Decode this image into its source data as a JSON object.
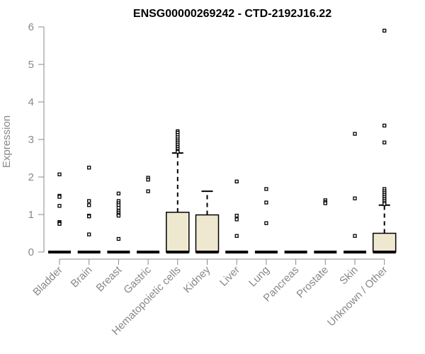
{
  "chart_data": {
    "type": "box",
    "title": "ENSG00000269242 - CTD-2192J16.22",
    "xlabel": "",
    "ylabel": "Expression",
    "ylim": [
      0,
      6
    ],
    "yticks": [
      0,
      1,
      2,
      3,
      4,
      5,
      6
    ],
    "grid": false,
    "colors": {
      "box_fill": "#efe8d0",
      "box_stroke": "#000000",
      "axis": "#888888"
    },
    "categories": [
      "Bladder",
      "Brain",
      "Breast",
      "Gastric",
      "Hematopoietic cells",
      "Kidney",
      "Liver",
      "Lung",
      "Pancreas",
      "Prostate",
      "Skin",
      "Unknown / Other"
    ],
    "boxes": [
      {
        "category": "Bladder",
        "q1": 0,
        "median": 0,
        "q3": 0,
        "whisker_low": 0,
        "whisker_high": 0,
        "outliers": [
          2.07,
          1.5,
          1.47,
          1.23,
          0.8,
          0.77,
          0.75
        ]
      },
      {
        "category": "Brain",
        "q1": 0,
        "median": 0,
        "q3": 0,
        "whisker_low": 0,
        "whisker_high": 0,
        "outliers": [
          2.25,
          1.36,
          1.25,
          0.97,
          0.95,
          0.47
        ]
      },
      {
        "category": "Breast",
        "q1": 0,
        "median": 0,
        "q3": 0,
        "whisker_low": 0,
        "whisker_high": 0,
        "outliers": [
          1.56,
          1.36,
          1.3,
          1.25,
          1.18,
          1.1,
          1.05,
          1.0,
          0.97,
          0.35
        ]
      },
      {
        "category": "Gastric",
        "q1": 0,
        "median": 0,
        "q3": 0,
        "whisker_low": 0,
        "whisker_high": 0,
        "outliers": [
          1.98,
          1.93,
          1.62
        ]
      },
      {
        "category": "Hematopoietic cells",
        "q1": 0,
        "median": 0,
        "q3": 1.06,
        "whisker_low": 0,
        "whisker_high": 2.64,
        "outliers": [
          3.22,
          3.18,
          3.12,
          3.06,
          3.0,
          2.95,
          2.9,
          2.85,
          2.8,
          2.75,
          2.7,
          2.67
        ]
      },
      {
        "category": "Kidney",
        "q1": 0,
        "median": 0,
        "q3": 0.99,
        "whisker_low": 0,
        "whisker_high": 1.62,
        "outliers": []
      },
      {
        "category": "Liver",
        "q1": 0,
        "median": 0,
        "q3": 0,
        "whisker_low": 0,
        "whisker_high": 0,
        "outliers": [
          1.88,
          0.97,
          0.87,
          0.43
        ]
      },
      {
        "category": "Lung",
        "q1": 0,
        "median": 0,
        "q3": 0,
        "whisker_low": 0,
        "whisker_high": 0,
        "outliers": [
          1.68,
          1.32,
          0.77
        ]
      },
      {
        "category": "Pancreas",
        "q1": 0,
        "median": 0,
        "q3": 0,
        "whisker_low": 0,
        "whisker_high": 0,
        "outliers": []
      },
      {
        "category": "Prostate",
        "q1": 0,
        "median": 0,
        "q3": 0,
        "whisker_low": 0,
        "whisker_high": 0,
        "outliers": [
          1.38,
          1.33,
          1.3
        ]
      },
      {
        "category": "Skin",
        "q1": 0,
        "median": 0,
        "q3": 0,
        "whisker_low": 0,
        "whisker_high": 0,
        "outliers": [
          3.15,
          1.43,
          0.43
        ]
      },
      {
        "category": "Unknown / Other",
        "q1": 0,
        "median": 0,
        "q3": 0.5,
        "whisker_low": 0,
        "whisker_high": 1.25,
        "outliers": [
          5.9,
          3.37,
          2.92,
          1.68,
          1.62,
          1.57,
          1.52,
          1.47,
          1.42,
          1.37,
          1.32,
          1.28
        ]
      }
    ]
  }
}
